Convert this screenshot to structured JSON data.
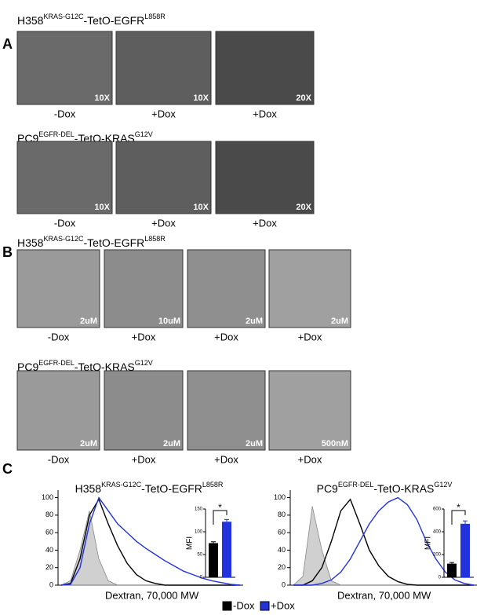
{
  "figure_labels": [
    "A",
    "B",
    "C"
  ],
  "panel_a": {
    "rows": [
      {
        "title": [
          "H358",
          "KRAS-G12C",
          "-TetO-EGFR",
          "L858R"
        ],
        "images": [
          {
            "scale": "10X",
            "caption": "-Dox"
          },
          {
            "scale": "10X",
            "caption": "+Dox"
          },
          {
            "scale": "20X",
            "caption": "+Dox"
          }
        ]
      },
      {
        "title": [
          "PC9",
          "EGFR-DEL",
          "-TetO-KRAS",
          "G12V"
        ],
        "images": [
          {
            "scale": "10X",
            "caption": "-Dox"
          },
          {
            "scale": "10X",
            "caption": "+Dox"
          },
          {
            "scale": "20X",
            "caption": "+Dox"
          }
        ]
      }
    ]
  },
  "panel_b": {
    "rows": [
      {
        "title": [
          "H358",
          "KRAS-G12C",
          "-TetO-EGFR",
          "L858R"
        ],
        "images": [
          {
            "scale": "2uM",
            "caption": "-Dox"
          },
          {
            "scale": "10uM",
            "caption": "+Dox"
          },
          {
            "scale": "2uM",
            "caption": "+Dox"
          },
          {
            "scale": "2uM",
            "caption": "+Dox"
          }
        ]
      },
      {
        "title": [
          "PC9",
          "EGFR-DEL",
          "-TetO-KRAS",
          "G12V"
        ],
        "images": [
          {
            "scale": "2uM",
            "caption": "-Dox"
          },
          {
            "scale": "2uM",
            "caption": "+Dox"
          },
          {
            "scale": "2uM",
            "caption": "+Dox"
          },
          {
            "scale": "500nM",
            "caption": "+Dox"
          }
        ]
      }
    ]
  },
  "chart_data": [
    {
      "type": "line",
      "title": [
        "H358",
        "KRAS-G12C",
        "-TetO-EGFR",
        "L858R"
      ],
      "x_label": "Dextran, 70,000 MW",
      "ylim": [
        0,
        105
      ],
      "yticks": [
        0,
        20,
        40,
        60,
        80,
        100
      ],
      "series": [
        {
          "color": "#b0b0b0",
          "fill": true,
          "values": [
            0,
            5,
            40,
            85,
            30,
            5,
            0,
            0,
            0,
            0,
            0,
            0,
            0,
            0,
            0,
            0,
            0,
            0,
            0,
            0
          ]
        },
        {
          "color": "#000000",
          "values": [
            0,
            2,
            30,
            80,
            98,
            70,
            45,
            25,
            12,
            5,
            2,
            0,
            0,
            0,
            0,
            0,
            0,
            0,
            0,
            0
          ]
        },
        {
          "color": "#2233dd",
          "values": [
            0,
            1,
            20,
            70,
            100,
            85,
            70,
            60,
            50,
            42,
            35,
            28,
            22,
            16,
            12,
            8,
            5,
            3,
            1,
            0
          ]
        }
      ]
    },
    {
      "type": "bar",
      "y_label": "MFI",
      "annotation": "*",
      "ylim": [
        0,
        150
      ],
      "yticks": [
        0,
        50,
        100,
        150
      ],
      "series": [
        {
          "name": "-Dox",
          "color": "#000000",
          "values": [
            75
          ],
          "errors": [
            3
          ]
        },
        {
          "name": "+Dox",
          "color": "#2233dd",
          "values": [
            122
          ],
          "errors": [
            5
          ]
        }
      ]
    },
    {
      "type": "line",
      "title": [
        "PC9",
        "EGFR-DEL",
        "-TetO-KRAS",
        "G12V"
      ],
      "x_label": "Dextran, 70,000 MW",
      "ylim": [
        0,
        105
      ],
      "yticks": [
        0,
        20,
        40,
        60,
        80,
        100
      ],
      "series": [
        {
          "color": "#b0b0b0",
          "fill": true,
          "values": [
            0,
            10,
            90,
            40,
            5,
            0,
            0,
            0,
            0,
            0,
            0,
            0,
            0,
            0,
            0,
            0,
            0,
            0,
            0,
            0
          ]
        },
        {
          "color": "#000000",
          "values": [
            0,
            0,
            5,
            20,
            50,
            85,
            98,
            70,
            40,
            22,
            10,
            4,
            1,
            0,
            0,
            0,
            0,
            0,
            0,
            0
          ]
        },
        {
          "color": "#2233dd",
          "values": [
            0,
            0,
            0,
            2,
            6,
            15,
            30,
            50,
            70,
            85,
            95,
            100,
            92,
            75,
            50,
            30,
            15,
            6,
            2,
            0
          ]
        }
      ]
    },
    {
      "type": "bar",
      "y_label": "MFI",
      "annotation": "*",
      "ylim": [
        0,
        600
      ],
      "yticks": [
        0,
        200,
        400,
        600
      ],
      "series": [
        {
          "name": "-Dox",
          "color": "#000000",
          "values": [
            120
          ],
          "errors": [
            10
          ]
        },
        {
          "name": "+Dox",
          "color": "#2233dd",
          "values": [
            470
          ],
          "errors": [
            25
          ]
        }
      ]
    }
  ]
}
